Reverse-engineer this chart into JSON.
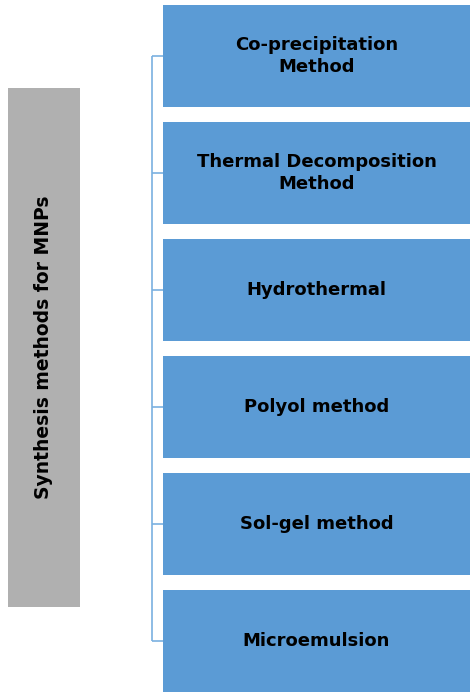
{
  "title_box": {
    "text": "Synthesis methods for MNPs",
    "bg_color": "#b0b0b0",
    "text_color": "#000000",
    "fontsize": 13.5,
    "fontweight": "bold"
  },
  "methods": [
    "Co-precipitation\nMethod",
    "Thermal Decomposition\nMethod",
    "Hydrothermal",
    "Polyol method",
    "Sol-gel method",
    "Microemulsion"
  ],
  "box_color": "#5b9bd5",
  "text_color": "#000000",
  "line_color": "#7ab0e0",
  "bg_color": "#ffffff",
  "fontsize": 13,
  "fontweight": "bold",
  "fig_width": 4.74,
  "fig_height": 6.97,
  "dpi": 100
}
